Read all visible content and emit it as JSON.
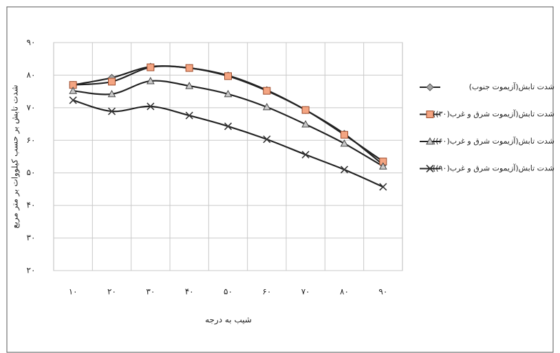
{
  "chart_data": {
    "type": "line",
    "y_label": "شدت تابش بر حسب کیلووات بر متر مربع",
    "x_label": "شیب به درجه",
    "categories": [
      "۱۰",
      "۲۰",
      "۳۰",
      "۴۰",
      "۵۰",
      "۶۰",
      "۷۰",
      "۸۰",
      "۹۰"
    ],
    "series": [
      {
        "name": "شدت تابش(آزیموت جنوب)",
        "color": "#a6a6a6",
        "marker": "diamond",
        "values": [
          77,
          79.2,
          82.6,
          82.2,
          79.9,
          75.4,
          69.3,
          62,
          52.5
        ]
      },
      {
        "name": "شدت تابش(آزیموت شرق و غرب(۳۰))",
        "color": "#f4a582",
        "marker": "square",
        "values": [
          77,
          78,
          82.4,
          82.2,
          79.7,
          75.2,
          69.3,
          61.7,
          53.5
        ]
      },
      {
        "name": "شدت تابش(آزیموت شرق و غرب(۶۰))",
        "color": "#c8c8c8",
        "marker": "triangle",
        "values": [
          75.2,
          74.2,
          78.2,
          76.7,
          74.2,
          70.2,
          64.9,
          59,
          52
        ]
      },
      {
        "name": "شدت تابش(آزیموت شرق و غرب(۹۰))",
        "color": "#333333",
        "marker": "x",
        "values": [
          72.3,
          68.9,
          70.4,
          67.6,
          64.3,
          60.3,
          55.6,
          51,
          45.7
        ]
      }
    ],
    "ylim": [
      20,
      90
    ],
    "yticks": [
      {
        "value": 20,
        "label": "۲۰"
      },
      {
        "value": 30,
        "label": "۳۰"
      },
      {
        "value": 40,
        "label": "۴۰"
      },
      {
        "value": 50,
        "label": "۵۰"
      },
      {
        "value": 60,
        "label": "۶۰"
      },
      {
        "value": 70,
        "label": "۷۰"
      },
      {
        "value": 80,
        "label": "۸۰"
      },
      {
        "value": 90,
        "label": "۹۰"
      }
    ],
    "grid": true,
    "legend": "right"
  }
}
